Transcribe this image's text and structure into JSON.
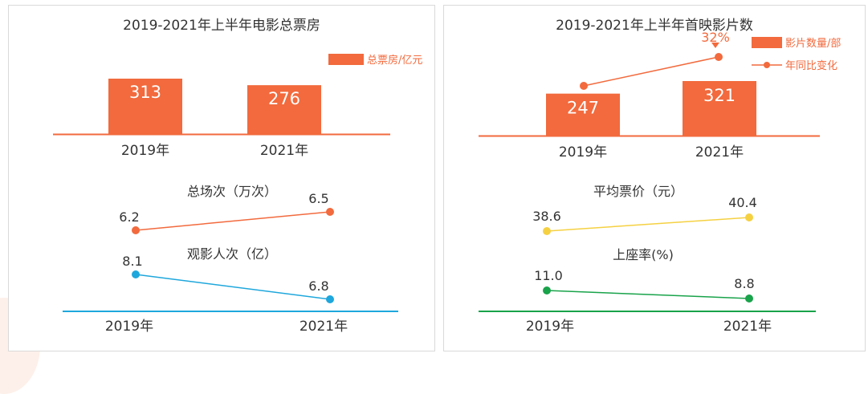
{
  "colors": {
    "bar": "#f26a3d",
    "barLabel": "#ffffff",
    "viewers": "#1ea7dc",
    "price": "#f5d142",
    "occupancy": "#19a34a",
    "baseline_blue": "#1ea7dc",
    "baseline_green": "#19a34a",
    "text": "#333333"
  },
  "chart_data": [
    {
      "type": "bar",
      "title": "2019-2021年上半年电影总票房",
      "categories": [
        "2019年",
        "2021年"
      ],
      "series": [
        {
          "name": "总票房/亿元",
          "values": [
            313,
            276
          ]
        }
      ],
      "legend": "top-right"
    },
    {
      "type": "line",
      "categories": [
        "2019年",
        "2021年"
      ],
      "series": [
        {
          "name": "总场次（万次）",
          "values": [
            6.2,
            6.5
          ]
        },
        {
          "name": "观影人次（亿）",
          "values": [
            8.1,
            6.8
          ]
        }
      ]
    },
    {
      "type": "bar",
      "title": "2019-2021年上半年首映影片数",
      "categories": [
        "2019年",
        "2021年"
      ],
      "series": [
        {
          "name": "影片数量/部",
          "values": [
            247,
            321
          ]
        },
        {
          "name": "年同比变化",
          "type": "line",
          "annotation": "32%"
        }
      ],
      "legend": "top-right"
    },
    {
      "type": "line",
      "categories": [
        "2019年",
        "2021年"
      ],
      "series": [
        {
          "name": "平均票价（元）",
          "values": [
            38.6,
            40.4
          ]
        },
        {
          "name": "上座率(%)",
          "values": [
            11.0,
            8.8
          ],
          "labels": [
            "11.0",
            "8.8"
          ]
        }
      ]
    }
  ]
}
